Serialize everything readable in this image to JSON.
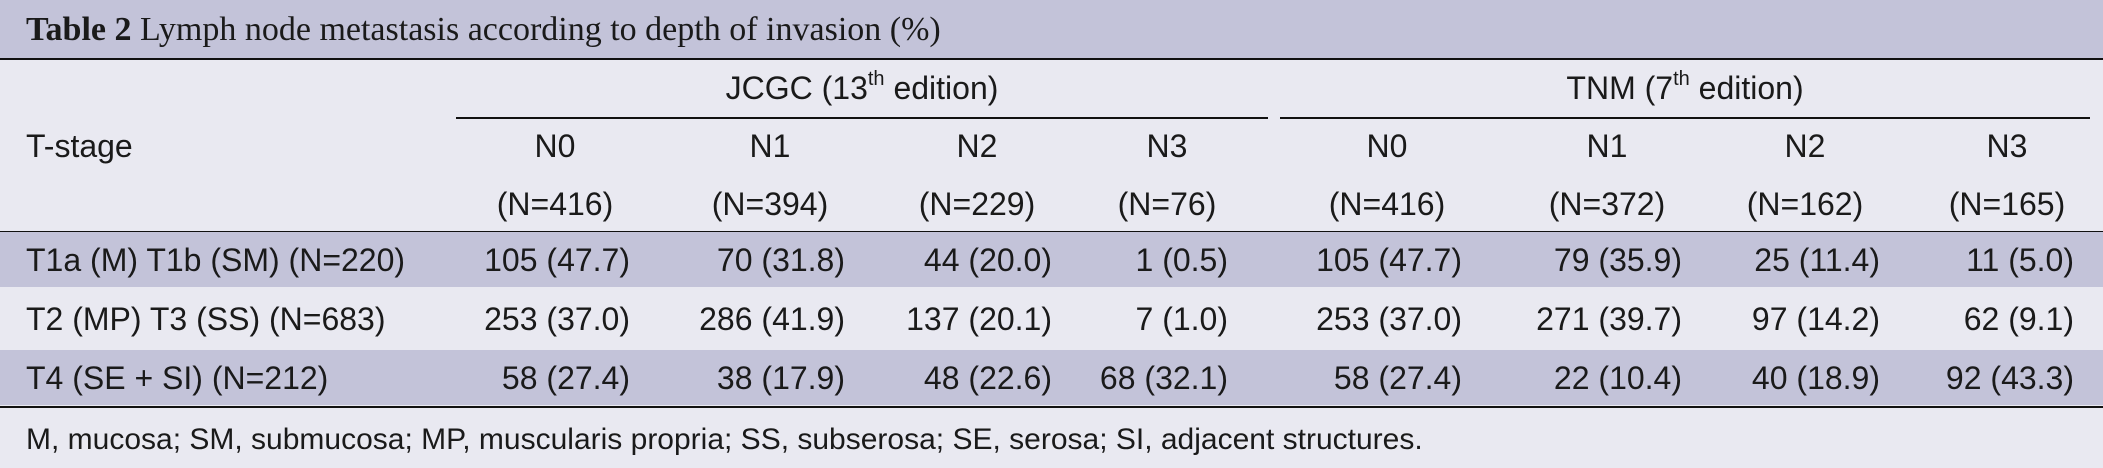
{
  "title": {
    "label": "Table 2",
    "text": "Lymph node metastasis according to depth of invasion (%)"
  },
  "row_header": "T-stage",
  "groups": [
    {
      "name": "JCGC (13",
      "sup": "th",
      "rest": " edition)"
    },
    {
      "name": "TNM (7",
      "sup": "th",
      "rest": " edition)"
    }
  ],
  "columns": [
    {
      "label": "N0",
      "count": "(N=416)"
    },
    {
      "label": "N1",
      "count": "(N=394)"
    },
    {
      "label": "N2",
      "count": "(N=229)"
    },
    {
      "label": "N3",
      "count": "(N=76)"
    },
    {
      "label": "N0",
      "count": "(N=416)"
    },
    {
      "label": "N1",
      "count": "(N=372)"
    },
    {
      "label": "N2",
      "count": "(N=162)"
    },
    {
      "label": "N3",
      "count": "(N=165)"
    }
  ],
  "rows": [
    {
      "stage": "T1a (M) T1b (SM) (N=220)",
      "cells": [
        "105 (47.7)",
        "70 (31.8)",
        "44 (20.0)",
        "1 (0.5)",
        "105 (47.7)",
        "79 (35.9)",
        "25 (11.4)",
        "11 (5.0)"
      ]
    },
    {
      "stage": "T2 (MP) T3 (SS) (N=683)",
      "cells": [
        "253 (37.0)",
        "286 (41.9)",
        "137 (20.1)",
        "7 (1.0)",
        "253 (37.0)",
        "271 (39.7)",
        "97 (14.2)",
        "62 (9.1)"
      ]
    },
    {
      "stage": "T4 (SE + SI) (N=212)",
      "cells": [
        "58 (27.4)",
        "38 (17.9)",
        "48 (22.6)",
        "68 (32.1)",
        "58 (27.4)",
        "22 (10.4)",
        "40 (18.9)",
        "92 (43.3)"
      ]
    }
  ],
  "footnote": "M, mucosa; SM, submucosa; MP, muscularis propria; SS, subserosa; SE, serosa; SI, adjacent structures.",
  "colors": {
    "title_band": "#c3c3d9",
    "background": "#e9e9f1",
    "row_band": "#c3c3d9"
  }
}
